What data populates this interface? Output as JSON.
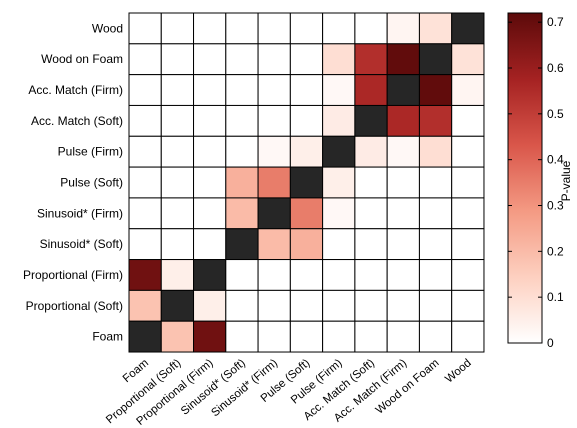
{
  "chart_data": {
    "type": "heatmap",
    "title": "",
    "xlabel": "",
    "ylabel": "",
    "x_categories": [
      "Foam",
      "Proportional (Soft)",
      "Proportional (Firm)",
      "Sinusoid* (Soft)",
      "Sinusoid* (Firm)",
      "Pulse (Soft)",
      "Pulse (Firm)",
      "Acc. Match (Soft)",
      "Acc. Match (Firm)",
      "Wood on Foam",
      "Wood"
    ],
    "y_categories": [
      "Wood",
      "Wood on Foam",
      "Acc. Match (Firm)",
      "Acc. Match (Soft)",
      "Pulse (Firm)",
      "Pulse (Soft)",
      "Sinusoid* (Firm)",
      "Sinusoid* (Soft)",
      "Proportional (Firm)",
      "Proportional (Soft)",
      "Foam"
    ],
    "values": [
      [
        0,
        0,
        0,
        0,
        0,
        0,
        0,
        0,
        0.03,
        0.09,
        null
      ],
      [
        0,
        0,
        0,
        0,
        0,
        0,
        0.1,
        0.54,
        0.71,
        null,
        0.09
      ],
      [
        0,
        0,
        0,
        0,
        0,
        0,
        0.02,
        0.56,
        null,
        0.71,
        0.03
      ],
      [
        0,
        0,
        0,
        0,
        0,
        0,
        0.06,
        null,
        0.56,
        0.54,
        0
      ],
      [
        0,
        0,
        0,
        0,
        0.02,
        0.05,
        null,
        0.06,
        0.02,
        0.1,
        0
      ],
      [
        0,
        0,
        0,
        0.23,
        0.35,
        null,
        0.05,
        0,
        0,
        0,
        0
      ],
      [
        0,
        0,
        0,
        0.2,
        null,
        0.35,
        0.02,
        0,
        0,
        0,
        0
      ],
      [
        0,
        0,
        0,
        null,
        0.2,
        0.23,
        0,
        0,
        0,
        0,
        0
      ],
      [
        0.68,
        0.05,
        null,
        0,
        0,
        0,
        0,
        0,
        0,
        0,
        0
      ],
      [
        0.18,
        null,
        0.05,
        0,
        0,
        0,
        0,
        0,
        0,
        0,
        0
      ],
      [
        null,
        0.18,
        0.68,
        0,
        0,
        0,
        0,
        0,
        0,
        0,
        0
      ]
    ],
    "diagonal_color": "#262626",
    "colorbar": {
      "label": "P-value",
      "min": 0,
      "max": 0.72,
      "ticks": [
        0,
        0.1,
        0.2,
        0.3,
        0.4,
        0.5,
        0.6,
        0.7
      ],
      "tick_labels": [
        "0",
        "0.1",
        "0.2",
        "0.3",
        "0.4",
        "0.5",
        "0.6",
        "0.7"
      ],
      "color_stops": [
        "#ffffff",
        "#fdd0c0",
        "#f49a83",
        "#d9564a",
        "#a52222",
        "#5c0a0a"
      ]
    }
  }
}
